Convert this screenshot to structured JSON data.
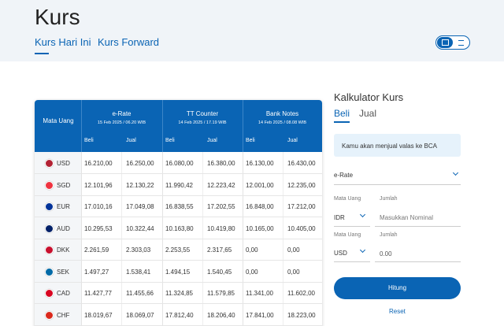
{
  "header": {
    "title": "Kurs",
    "tabs": [
      "Kurs Hari Ini",
      "Kurs Forward"
    ]
  },
  "table": {
    "currency_header": "Mata Uang",
    "groups": [
      {
        "name": "e-Rate",
        "date": "15 Feb 2025 / 06.20 WIB",
        "sub": [
          "Beli",
          "Jual"
        ]
      },
      {
        "name": "TT Counter",
        "date": "14 Feb 2025 / 17.19 WIB",
        "sub": [
          "Beli",
          "Jual"
        ]
      },
      {
        "name": "Bank Notes",
        "date": "14 Feb 2025 / 08.08 WIB",
        "sub": [
          "Beli",
          "Jual"
        ]
      }
    ],
    "rows": [
      [
        "USD",
        "16.210,00",
        "16.250,00",
        "16.080,00",
        "16.380,00",
        "16.130,00",
        "16.430,00"
      ],
      [
        "SGD",
        "12.101,96",
        "12.130,22",
        "11.990,42",
        "12.223,42",
        "12.001,00",
        "12.235,00"
      ],
      [
        "EUR",
        "17.010,16",
        "17.049,08",
        "16.838,55",
        "17.202,55",
        "16.848,00",
        "17.212,00"
      ],
      [
        "AUD",
        "10.295,53",
        "10.322,44",
        "10.163,80",
        "10.419,80",
        "10.165,00",
        "10.405,00"
      ],
      [
        "DKK",
        "2.261,59",
        "2.303,03",
        "2.253,55",
        "2.317,65",
        "0,00",
        "0,00"
      ],
      [
        "SEK",
        "1.497,27",
        "1.538,41",
        "1.494,15",
        "1.540,45",
        "0,00",
        "0,00"
      ],
      [
        "CAD",
        "11.427,77",
        "11.455,66",
        "11.324,85",
        "11.579,85",
        "11.341,00",
        "11.602,00"
      ],
      [
        "CHF",
        "18.019,67",
        "18.069,07",
        "17.812,40",
        "18.206,40",
        "17.841,00",
        "18.223,00"
      ]
    ]
  },
  "calculator": {
    "title": "Kalkulator Kurs",
    "tabs": [
      "Beli",
      "Jual"
    ],
    "info": "Kamu akan menjual valas ke BCA",
    "rate_type": "e-Rate",
    "currency_label": "Mata Uang",
    "amount_label": "Jumlah",
    "from_currency": "IDR",
    "amount_placeholder": "Masukkan Nominal",
    "to_currency": "USD",
    "result": "0.00",
    "button": "Hitung",
    "reset": "Reset"
  }
}
